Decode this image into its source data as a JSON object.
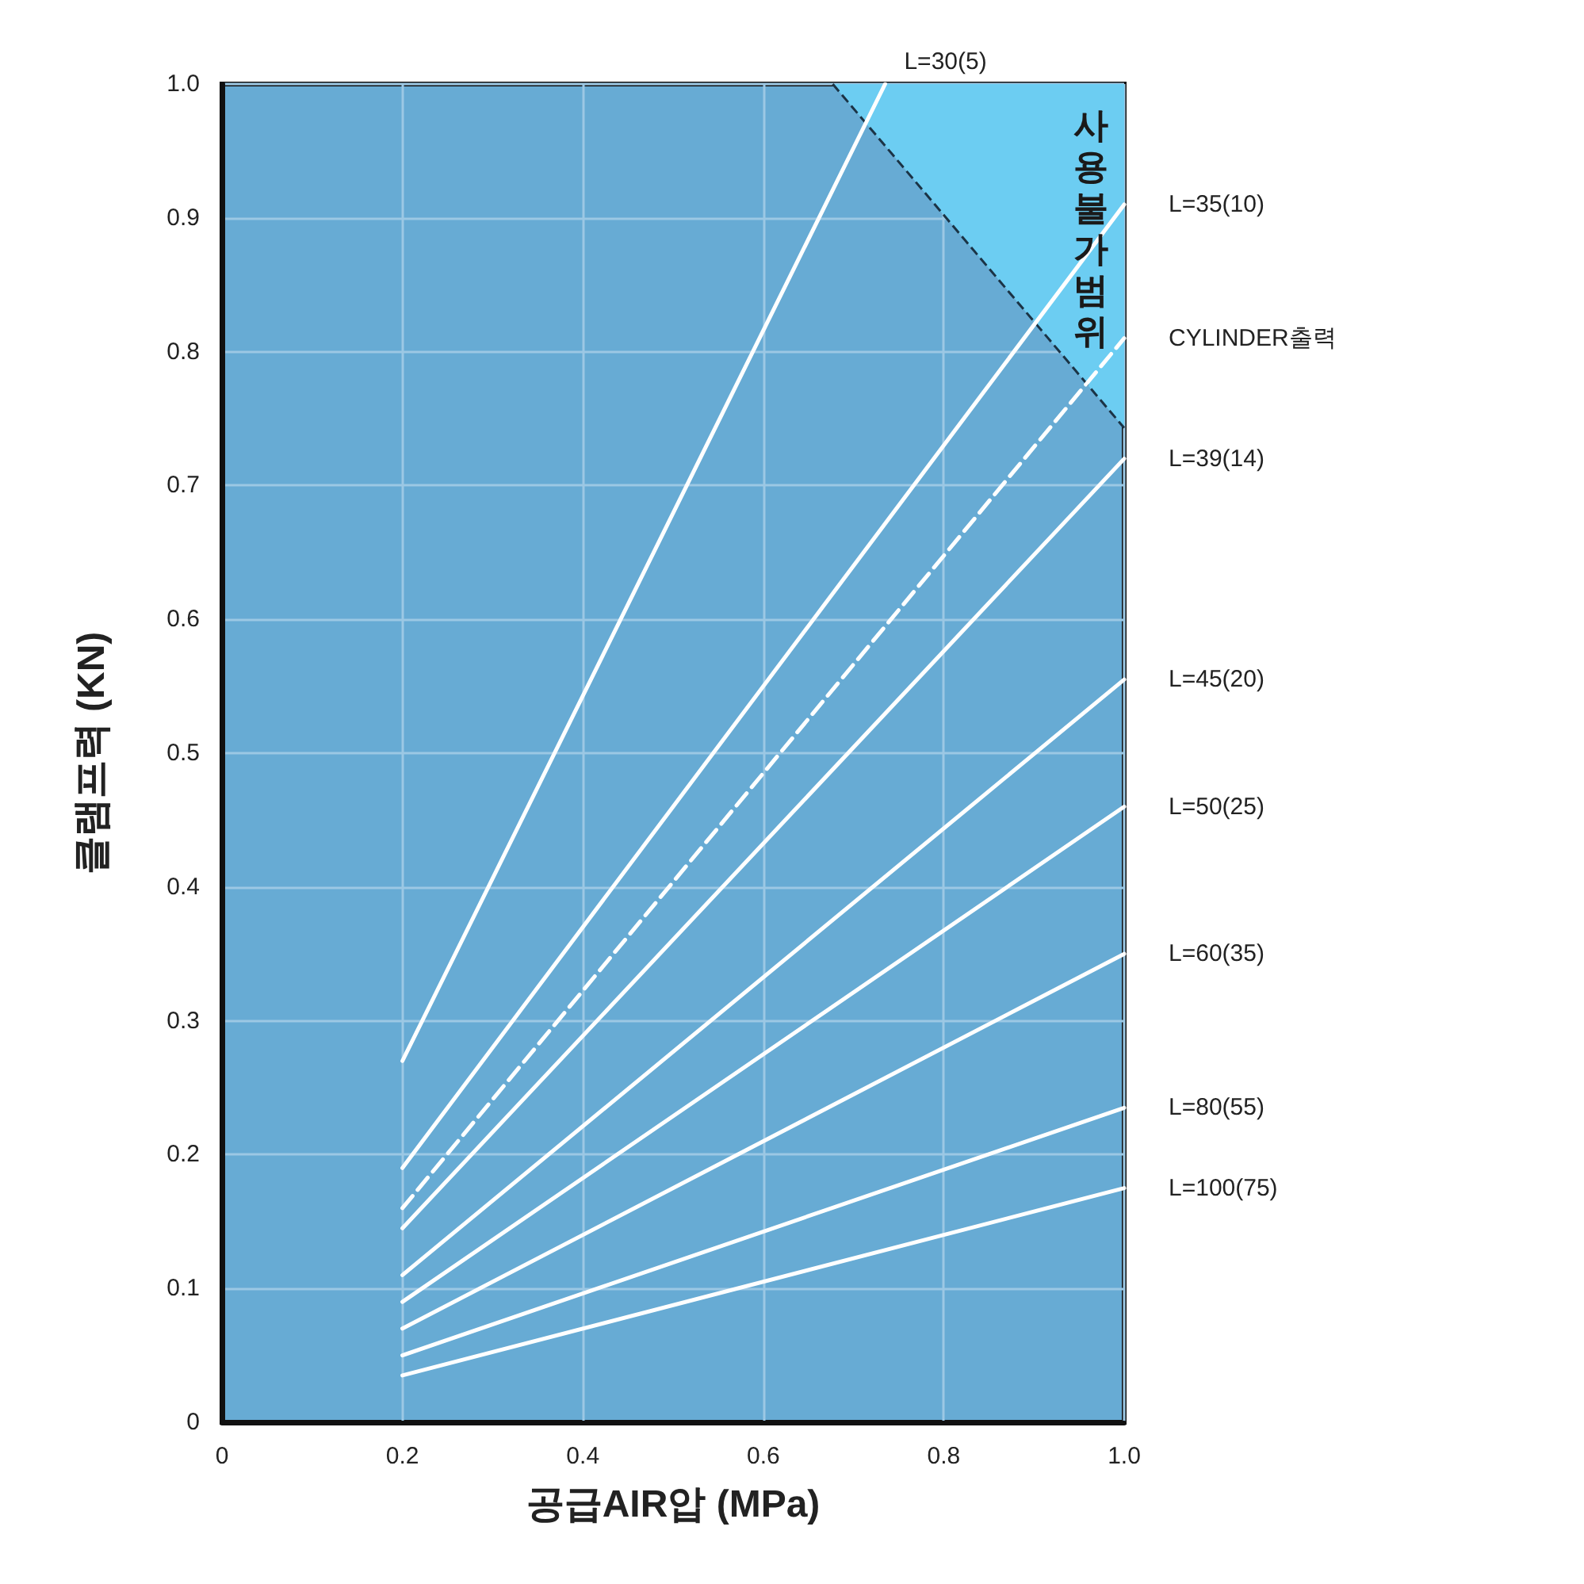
{
  "chart_data": {
    "type": "line",
    "xlabel": "공급AIR압 (MPa)",
    "ylabel": "클램프력 (KN)",
    "xlim": [
      0,
      1
    ],
    "ylim": [
      0,
      1
    ],
    "xticks": [
      0,
      0.2,
      0.4,
      0.6,
      0.8,
      {
        "value": 1,
        "label": "1.0"
      }
    ],
    "yticks": [
      0,
      0.1,
      0.2,
      0.3,
      0.4,
      0.5,
      0.6,
      0.7,
      0.8,
      0.9,
      {
        "value": 1,
        "label": "1.0"
      }
    ],
    "grid": true,
    "legend": false,
    "marker": "none",
    "line_style": "solid",
    "series": [
      {
        "type": "area",
        "color": "#6ccdf2",
        "line_style": "dashed",
        "x": [
          0.677,
          1.0
        ],
        "values": [
          1.0,
          0.743
        ]
      },
      {
        "name": "L=30(5)",
        "color": "#ffffff",
        "x": [
          0.2,
          0.735
        ],
        "values": [
          0.27,
          1.0
        ]
      },
      {
        "name": "L=35(10)",
        "color": "#ffffff",
        "x": [
          0.2,
          1.0
        ],
        "values": [
          0.19,
          0.91
        ]
      },
      {
        "name": "CYLINDER출력",
        "color": "#ffffff",
        "line_style": "dashed",
        "x": [
          0.2,
          1.0
        ],
        "values": [
          0.16,
          0.81
        ]
      },
      {
        "name": "L=39(14)",
        "color": "#ffffff",
        "x": [
          0.2,
          1.0
        ],
        "values": [
          0.145,
          0.72
        ]
      },
      {
        "name": "L=45(20)",
        "color": "#ffffff",
        "x": [
          0.2,
          1.0
        ],
        "values": [
          0.11,
          0.555
        ]
      },
      {
        "name": "L=50(25)",
        "color": "#ffffff",
        "x": [
          0.2,
          1.0
        ],
        "values": [
          0.09,
          0.46
        ]
      },
      {
        "name": "L=60(35)",
        "color": "#ffffff",
        "x": [
          0.2,
          1.0
        ],
        "values": [
          0.07,
          0.35
        ]
      },
      {
        "name": "L=80(55)",
        "color": "#ffffff",
        "x": [
          0.2,
          1.0
        ],
        "values": [
          0.05,
          0.235
        ]
      },
      {
        "name": "L=100(75)",
        "color": "#ffffff",
        "x": [
          0.2,
          1.0
        ],
        "values": [
          0.035,
          0.175
        ]
      }
    ],
    "annotations": [
      "사용불가범위"
    ]
  }
}
